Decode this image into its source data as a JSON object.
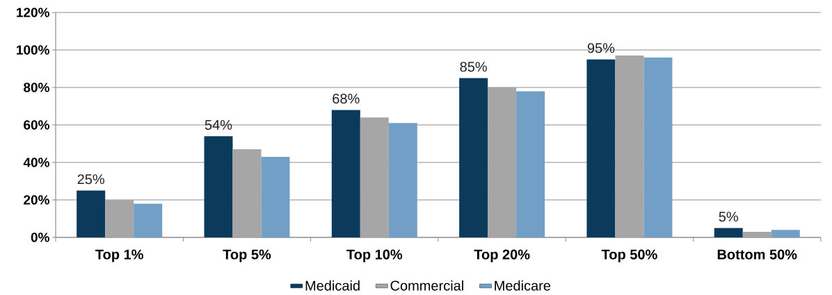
{
  "chart_data": {
    "type": "bar",
    "categories": [
      "Top 1%",
      "Top 5%",
      "Top 10%",
      "Top 20%",
      "Top 50%",
      "Bottom 50%"
    ],
    "series": [
      {
        "name": "Medicaid",
        "color": "#0b3a5c",
        "values": [
          25,
          54,
          68,
          85,
          95,
          5
        ],
        "value_labels": [
          "25%",
          "54%",
          "68%",
          "85%",
          "95%",
          "5%"
        ]
      },
      {
        "name": "Commercial",
        "color": "#a6a6a6",
        "values": [
          20,
          47,
          64,
          80,
          97,
          3
        ]
      },
      {
        "name": "Medicare",
        "color": "#729fc6",
        "values": [
          18,
          43,
          61,
          78,
          96,
          4
        ]
      }
    ],
    "ylim": [
      0,
      120
    ],
    "yticks": [
      {
        "value": 0,
        "label": "0%"
      },
      {
        "value": 20,
        "label": "20%"
      },
      {
        "value": 40,
        "label": "40%"
      },
      {
        "value": 60,
        "label": "60%"
      },
      {
        "value": 80,
        "label": "80%"
      },
      {
        "value": 100,
        "label": "100%"
      },
      {
        "value": 120,
        "label": "120%"
      }
    ],
    "grid": "y",
    "legend": "bottom"
  }
}
